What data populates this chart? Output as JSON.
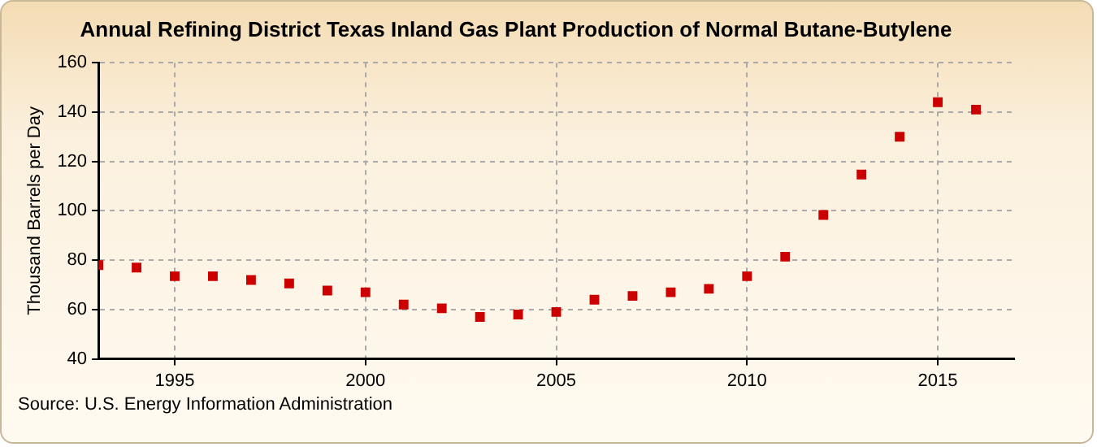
{
  "chart_data": {
    "type": "scatter",
    "title": "Annual Refining District Texas Inland Gas Plant Production of Normal Butane-Butylene",
    "ylabel": "Thousand Barrels per Day",
    "annotations": [
      "Source: U.S. Energy Information Administration"
    ],
    "x": [
      1993,
      1994,
      1995,
      1996,
      1997,
      1998,
      1999,
      2000,
      2001,
      2002,
      2003,
      2004,
      2005,
      2006,
      2007,
      2008,
      2009,
      2010,
      2011,
      2012,
      2013,
      2014,
      2015,
      2016
    ],
    "series": [
      {
        "color": "#cc0000",
        "values": [
          78,
          77,
          73.5,
          73.5,
          72,
          70.6,
          67.7,
          67,
          62,
          60.5,
          57,
          58,
          59,
          64,
          65.5,
          67,
          68.4,
          73.5,
          81.4,
          98.3,
          114.7,
          130,
          144,
          141
        ]
      }
    ],
    "xlim": [
      1993,
      2017
    ],
    "xticks": [
      1995,
      2000,
      2005,
      2010,
      2015
    ],
    "ylim": [
      40,
      160
    ],
    "yticks": [
      40,
      60,
      80,
      100,
      120,
      140,
      160
    ],
    "grid": true,
    "legend": false,
    "marker": "square"
  }
}
